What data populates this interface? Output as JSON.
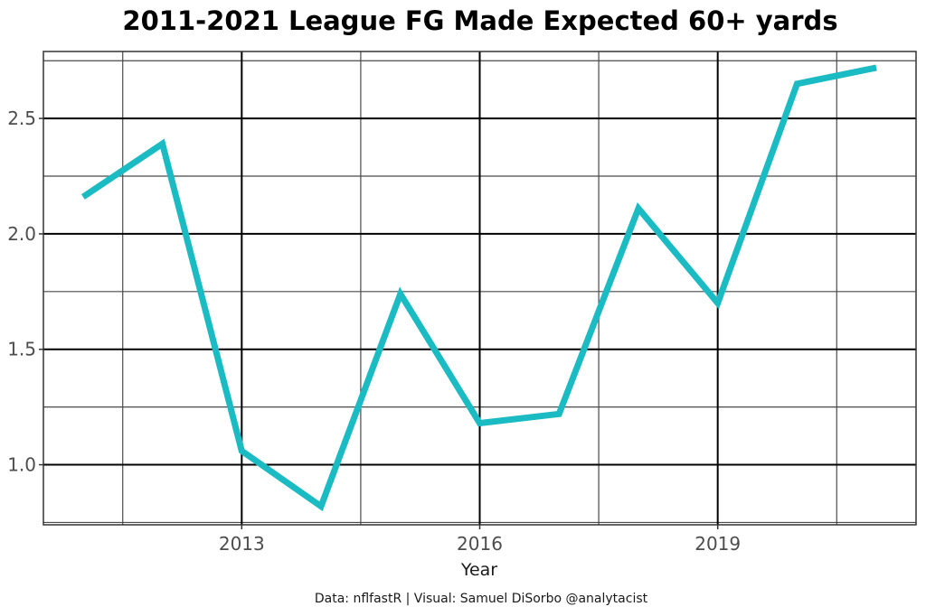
{
  "chart_data": {
    "type": "line",
    "title": "2011-2021 League FG Made Expected 60+ yards",
    "xlabel": "Year",
    "ylabel": "",
    "caption": "Data: nflfastR | Visual: Samuel DiSorbo @analytacist",
    "x": [
      2011,
      2012,
      2013,
      2014,
      2015,
      2016,
      2017,
      2018,
      2019,
      2020,
      2021
    ],
    "series": [
      {
        "name": "FG Made Expected 60+ yards",
        "color": "#1bbbc4",
        "values": [
          2.16,
          2.39,
          1.06,
          0.82,
          1.74,
          1.18,
          1.22,
          2.11,
          1.7,
          2.65,
          2.72
        ]
      }
    ],
    "xlim": [
      2010.5,
      2021.5
    ],
    "ylim": [
      0.74,
      2.79
    ],
    "x_ticks": [
      2013,
      2016,
      2019
    ],
    "x_tick_labels": [
      "2013",
      "2016",
      "2019"
    ],
    "x_minor_ticks": [
      2011.5,
      2014.5,
      2017.5,
      2020.5
    ],
    "y_ticks": [
      1.0,
      1.5,
      2.0,
      2.5
    ],
    "y_tick_labels": [
      "1.0",
      "1.5",
      "2.0",
      "2.5"
    ],
    "y_minor_ticks": [
      0.75,
      1.25,
      1.75,
      2.25,
      2.75
    ],
    "grid": true,
    "legend": "none"
  }
}
